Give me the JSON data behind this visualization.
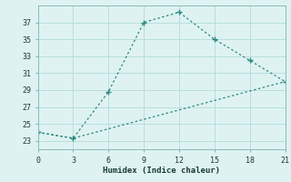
{
  "xlabel": "Humidex (Indice chaleur)",
  "line1_x": [
    0,
    3,
    6,
    9,
    12,
    15,
    18,
    21
  ],
  "line1_y": [
    24.0,
    23.3,
    28.8,
    37.0,
    38.2,
    35.0,
    32.5,
    30.0
  ],
  "line2_x": [
    0,
    3,
    21
  ],
  "line2_y": [
    24.0,
    23.3,
    30.0
  ],
  "color": "#2a8a7e",
  "bg_color": "#dff2f2",
  "grid_color": "#b8dede",
  "xlim": [
    0,
    21
  ],
  "ylim": [
    22,
    39
  ],
  "xticks": [
    0,
    3,
    6,
    9,
    12,
    15,
    18,
    21
  ],
  "yticks": [
    23,
    25,
    27,
    29,
    31,
    33,
    35,
    37
  ]
}
